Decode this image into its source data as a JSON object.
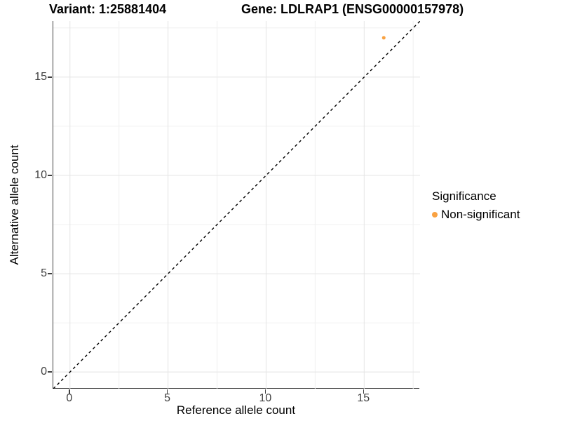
{
  "titles": {
    "variant": "Variant: 1:25881404",
    "gene": "Gene: LDLRAP1 (ENSG00000157978)"
  },
  "chart_data": {
    "type": "scatter",
    "xlabel": "Reference allele count",
    "ylabel": "Alternative allele count",
    "xlim": [
      -0.85,
      17.85
    ],
    "ylim": [
      -0.85,
      17.85
    ],
    "xticks": [
      0,
      5,
      10,
      15
    ],
    "yticks": [
      0,
      5,
      10,
      15
    ],
    "minor_ticks": [
      2.5,
      7.5,
      12.5,
      17.5
    ],
    "grid": "on",
    "series": [
      {
        "name": "Non-significant",
        "color": "#F9A242",
        "points": [
          {
            "x": 16,
            "y": 17
          }
        ]
      }
    ],
    "reference_line": {
      "description": "identity line y = x",
      "slope": 1,
      "intercept": 0,
      "style": "dashed",
      "color": "#000000"
    },
    "legend": {
      "title": "Significance",
      "position": "right",
      "items": [
        {
          "label": "Non-significant",
          "color": "#F9A242"
        }
      ]
    }
  },
  "colors": {
    "background": "#FFFFFF",
    "axis_line": "#3F3F3F",
    "grid_major": "#E4E4E4",
    "grid_minor": "#F0F0F0",
    "tick_text": "#404040",
    "point": "#F9A242"
  }
}
